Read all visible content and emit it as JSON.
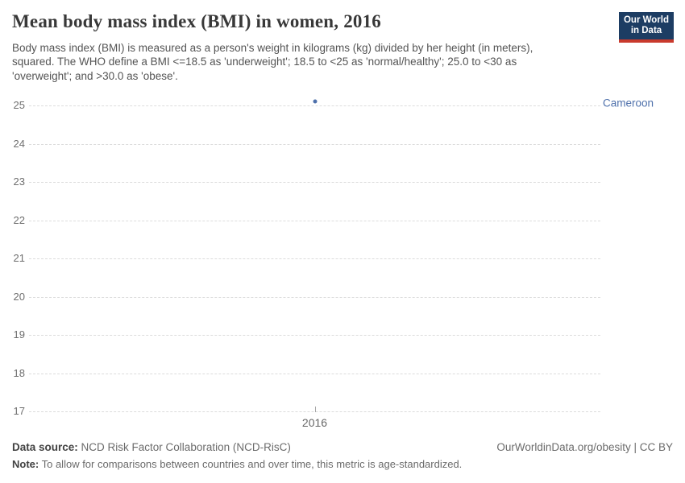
{
  "header": {
    "title": "Mean body mass index (BMI) in women, 2016",
    "subtitle": "Body mass index (BMI) is measured as a person's weight in kilograms (kg) divided by her height (in meters), squared. The WHO define a BMI <=18.5 as 'underweight'; 18.5 to <25 as 'normal/healthy'; 25.0 to <30 as 'overweight'; and >30.0 as 'obese'.",
    "logo": {
      "line1": "Our World",
      "line2": "in Data",
      "bg_color": "#1d3d63",
      "accent_color": "#c93a2d"
    }
  },
  "chart_data": {
    "type": "scatter",
    "title": "Mean body mass index (BMI) in women, 2016",
    "x": [
      2016
    ],
    "series": [
      {
        "name": "Cameroon",
        "values": [
          25.1
        ],
        "color": "#4e70ab"
      }
    ],
    "xlabel": "",
    "ylabel": "",
    "ylim": [
      17,
      25
    ],
    "yticks": [
      17,
      18,
      19,
      20,
      21,
      22,
      23,
      24,
      25
    ],
    "xticks": [
      "2016"
    ],
    "grid": "horizontal-dashed",
    "gridline_color": "#dcdcdc",
    "legend_position": "entity-label-right"
  },
  "footer": {
    "datasource_label": "Data source:",
    "datasource_value": "NCD Risk Factor Collaboration (NCD-RisC)",
    "credit": "OurWorldinData.org/obesity | CC BY",
    "note_label": "Note:",
    "note_value": "To allow for comparisons between countries and over time, this metric is age-standardized."
  }
}
